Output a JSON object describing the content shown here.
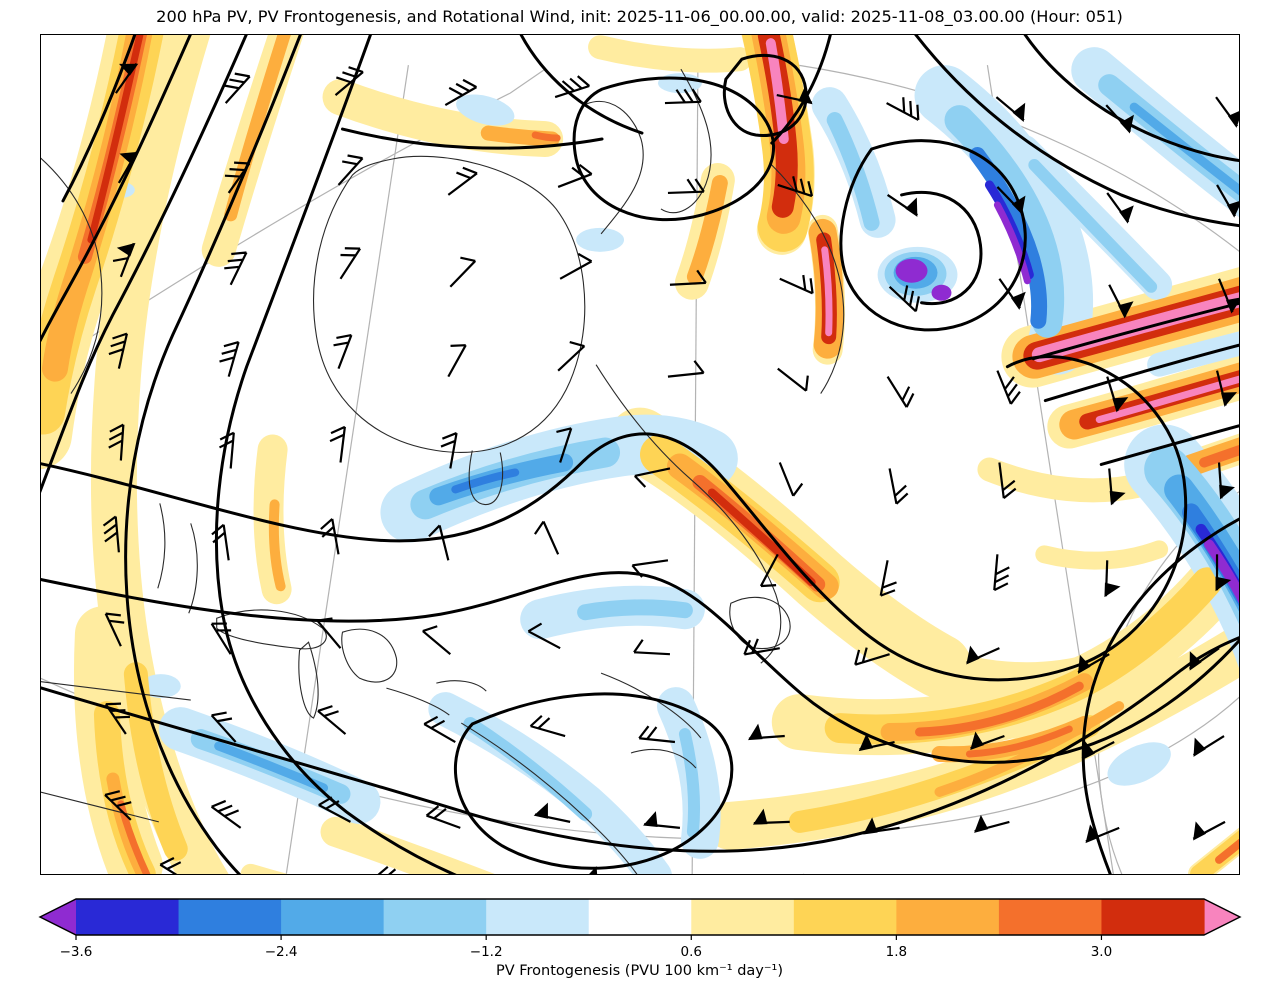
{
  "title": "200 hPa PV, PV Frontogenesis, and Rotational Wind, init: 2025-11-06_00.00.00, valid: 2025-11-08_03.00.00 (Hour: 051)",
  "chart_data": {
    "type": "heatmap",
    "title": "200 hPa PV, PV Frontogenesis, and Rotational Wind, init: 2025-11-06_00.00.00, valid: 2025-11-08_03.00.00 (Hour: 051)",
    "level": "200 hPa",
    "init_time": "2025-11-06_00.00.00",
    "valid_time": "2025-11-08_03.00.00",
    "forecast_hour": "051",
    "shading_variable": "PV Frontogenesis",
    "contour_variable": "PV",
    "vector_variable": "Rotational Wind (barbs)",
    "grid": "off",
    "legend_position": "bottom colorbar",
    "colorbar": {
      "label": "PV Frontogenesis (PVU 100 km⁻¹ day⁻¹)",
      "tick_labels": [
        "−3.6",
        "−2.4",
        "−1.2",
        "0.6",
        "1.8",
        "3.0"
      ],
      "boundaries": [
        -3.6,
        -3.0,
        -2.4,
        -1.8,
        -1.2,
        -0.6,
        0.6,
        1.2,
        1.8,
        2.4,
        3.0,
        3.6
      ],
      "segment_colors": [
        "#2929d6",
        "#2f7fdf",
        "#52aae8",
        "#8fd0f2",
        "#c9e8fa",
        "#ffffff",
        "#ffeca0",
        "#fed455",
        "#fdae3e",
        "#f4702c",
        "#d22d0d"
      ],
      "under_arrow_color": "#8f2bd1",
      "over_arrow_color": "#f884be",
      "extend": "both"
    }
  }
}
